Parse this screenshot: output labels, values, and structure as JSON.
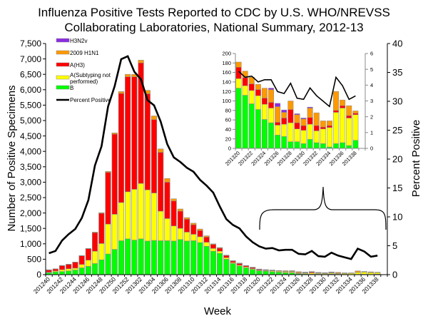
{
  "title_line1": "Influenza Positive Tests Reported to CDC by U.S. WHO/NREVSS",
  "title_line2": "Collaborating Laboratories, National Summary, 2012-13",
  "colors": {
    "H3N2v": "#8B2BE2",
    "2009 H1N1": "#FF9900",
    "A(H3)": "#FF0000",
    "A(Subtyping not performed)": "#FFFF00",
    "B": "#00FF00",
    "Percent Positive": "#000000"
  },
  "chart_data": [
    {
      "type": "bar",
      "stacked": true,
      "xlabel": "Week",
      "ylabel": "Number of Positive Specimens",
      "y2label": "Percent Positive",
      "ylim": [
        0,
        7500
      ],
      "y2lim": [
        0,
        40
      ],
      "yticks": [
        "0",
        "500",
        "1,000",
        "1,500",
        "2,000",
        "2,500",
        "3,000",
        "3,500",
        "4,000",
        "4,500",
        "5,000",
        "5,500",
        "6,000",
        "6,500",
        "7,000",
        "7,500"
      ],
      "y2ticks": [
        "0",
        "5",
        "10",
        "15",
        "20",
        "25",
        "30",
        "35",
        "40"
      ],
      "legend_position": "top-left",
      "legend": [
        "H3N2v",
        "2009 H1N1",
        "A(H3)",
        "A(Subtyping not performed)",
        "B",
        "Percent Positive"
      ],
      "categories": [
        "201240",
        "201241",
        "201242",
        "201243",
        "201244",
        "201245",
        "201246",
        "201247",
        "201248",
        "201249",
        "201250",
        "201251",
        "201252",
        "201301",
        "201302",
        "201303",
        "201304",
        "201305",
        "201306",
        "201307",
        "201308",
        "201309",
        "201310",
        "201311",
        "201312",
        "201313",
        "201314",
        "201315",
        "201316",
        "201317",
        "201318",
        "201319",
        "201320",
        "201321",
        "201322",
        "201323",
        "201324",
        "201325",
        "201326",
        "201327",
        "201328",
        "201329",
        "201330",
        "201331",
        "201332",
        "201333",
        "201334",
        "201335",
        "201336",
        "201337",
        "201338"
      ],
      "series": [
        {
          "name": "B",
          "values": [
            60,
            90,
            100,
            120,
            150,
            220,
            270,
            360,
            480,
            670,
            820,
            1100,
            1160,
            1120,
            1160,
            1090,
            1110,
            1100,
            1100,
            1090,
            1140,
            1090,
            1100,
            1040,
            920,
            760,
            690,
            500,
            360,
            280,
            220,
            170,
            127,
            112,
            94,
            82,
            61,
            54,
            28,
            25,
            14,
            14,
            10,
            19,
            12,
            10,
            3,
            10,
            12,
            6,
            17
          ]
        },
        {
          "name": "A(Subtyping not performed)",
          "values": [
            20,
            30,
            60,
            70,
            60,
            110,
            200,
            400,
            530,
            970,
            1140,
            1240,
            1530,
            1650,
            1800,
            1660,
            1540,
            960,
            720,
            490,
            360,
            290,
            210,
            190,
            130,
            90,
            70,
            50,
            30,
            30,
            30,
            25,
            20,
            20,
            28,
            29,
            32,
            31,
            21,
            26,
            40,
            27,
            28,
            32,
            25,
            31,
            41,
            66,
            73,
            58,
            54
          ]
        },
        {
          "name": "A(H3)",
          "values": [
            70,
            60,
            130,
            140,
            190,
            280,
            370,
            600,
            980,
            1680,
            2600,
            3540,
            3730,
            3650,
            3910,
            3120,
            2380,
            1910,
            1180,
            810,
            560,
            420,
            310,
            200,
            170,
            130,
            100,
            70,
            50,
            50,
            35,
            35,
            24,
            17,
            14,
            13,
            13,
            12,
            6,
            13,
            28,
            13,
            10,
            14,
            11,
            4,
            4,
            4,
            5,
            5,
            3
          ]
        },
        {
          "name": "2009 H1N1",
          "values": [
            10,
            10,
            10,
            10,
            10,
            10,
            10,
            20,
            20,
            30,
            40,
            60,
            80,
            80,
            90,
            110,
            120,
            110,
            120,
            70,
            70,
            50,
            50,
            50,
            40,
            20,
            20,
            13,
            13,
            15,
            12,
            12,
            11,
            14,
            14,
            11,
            21,
            27,
            33,
            12,
            18,
            17,
            14,
            20,
            27,
            13,
            10,
            40,
            12,
            21,
            5
          ]
        },
        {
          "name": "H3N2v",
          "values": [
            0,
            0,
            0,
            0,
            0,
            0,
            0,
            0,
            0,
            0,
            0,
            0,
            0,
            0,
            0,
            0,
            0,
            0,
            0,
            0,
            0,
            0,
            0,
            0,
            0,
            0,
            0,
            0,
            0,
            0,
            0,
            0,
            0,
            0,
            0,
            0,
            0,
            3,
            7,
            5,
            0,
            2,
            2,
            2,
            0,
            0,
            0,
            0,
            0,
            0,
            0
          ]
        },
        {
          "name": "Percent Positive",
          "axis": "right",
          "type": "line",
          "values": [
            3.7,
            4.1,
            5.9,
            7.0,
            7.9,
            9.8,
            12.9,
            18.9,
            22.2,
            29.1,
            32.6,
            37.3,
            37.8,
            35.1,
            33.8,
            30.2,
            29.3,
            26.5,
            22.6,
            20.3,
            19.5,
            18.5,
            17.8,
            16.4,
            15.4,
            14.2,
            11.8,
            9.6,
            8.6,
            8.0,
            6.6,
            5.6,
            4.9,
            4.5,
            4.6,
            4.2,
            4.3,
            4.3,
            3.6,
            3.5,
            4.1,
            3.2,
            3.1,
            3.8,
            3.3,
            3.0,
            2.7,
            4.5,
            4.0,
            3.1,
            3.3
          ]
        }
      ],
      "xtick_labels": [
        "201240",
        "201242",
        "201244",
        "201246",
        "201248",
        "201250",
        "201252",
        "201302",
        "201304",
        "201306",
        "201308",
        "201310",
        "201312",
        "201314",
        "201316",
        "201318",
        "201320",
        "201322",
        "201324",
        "201326",
        "201328",
        "201330",
        "201332",
        "201334",
        "201336",
        "201338"
      ]
    },
    {
      "type": "bar",
      "stacked": true,
      "inset": true,
      "ylim": [
        0,
        200
      ],
      "y2lim": [
        0,
        6
      ],
      "yticks": [
        "0",
        "20",
        "40",
        "60",
        "80",
        "100",
        "120",
        "140",
        "160",
        "180",
        "200"
      ],
      "y2ticks": [
        "0",
        "1",
        "2",
        "3",
        "4",
        "5",
        "6"
      ],
      "categories": [
        "201320",
        "201321",
        "201322",
        "201323",
        "201324",
        "201325",
        "201326",
        "201327",
        "201328",
        "201329",
        "201330",
        "201331",
        "201332",
        "201333",
        "201334",
        "201335",
        "201336",
        "201337",
        "201338"
      ],
      "series": [
        {
          "name": "B",
          "values": [
            127,
            112,
            94,
            82,
            61,
            54,
            28,
            25,
            14,
            14,
            10,
            19,
            12,
            10,
            3,
            10,
            12,
            6,
            17
          ]
        },
        {
          "name": "A(Subtyping not performed)",
          "values": [
            20,
            20,
            28,
            29,
            32,
            31,
            21,
            26,
            40,
            27,
            28,
            32,
            25,
            31,
            41,
            66,
            73,
            58,
            54
          ]
        },
        {
          "name": "A(H3)",
          "values": [
            24,
            17,
            14,
            13,
            13,
            12,
            6,
            13,
            28,
            13,
            10,
            14,
            11,
            4,
            4,
            4,
            5,
            5,
            3
          ]
        },
        {
          "name": "2009 H1N1",
          "values": [
            11,
            14,
            14,
            11,
            21,
            27,
            33,
            12,
            18,
            17,
            14,
            20,
            27,
            13,
            10,
            40,
            12,
            21,
            5
          ]
        },
        {
          "name": "H3N2v",
          "values": [
            0,
            0,
            0,
            0,
            0,
            3,
            7,
            5,
            0,
            2,
            2,
            2,
            0,
            0,
            0,
            0,
            0,
            0,
            0
          ]
        },
        {
          "name": "Percent Positive",
          "axis": "right",
          "type": "line",
          "values": [
            4.87,
            4.5,
            4.57,
            4.2,
            4.34,
            4.34,
            3.59,
            3.47,
            4.12,
            3.17,
            3.1,
            3.82,
            3.33,
            2.99,
            2.65,
            4.5,
            3.97,
            3.1,
            3.32
          ]
        }
      ],
      "xtick_labels": [
        "201320",
        "201322",
        "201324",
        "201326",
        "201328",
        "201330",
        "201332",
        "201334",
        "201336",
        "201338"
      ]
    }
  ]
}
